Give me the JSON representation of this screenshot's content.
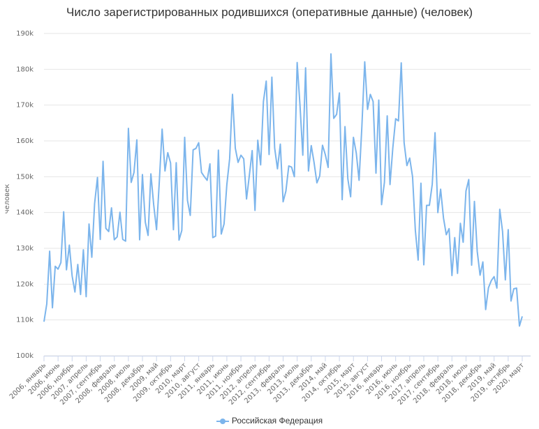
{
  "chart_data": {
    "type": "line",
    "title": "Число зарегистрированных родившихся (оперативные данные) (человек)",
    "xlabel": "",
    "ylabel": "человек",
    "ylim": [
      100000,
      190000
    ],
    "yticks": [
      "100k",
      "110k",
      "120k",
      "130k",
      "140k",
      "150k",
      "160k",
      "170k",
      "180k",
      "190k"
    ],
    "grid": true,
    "legend_position": "bottom-center",
    "xtick_labels": [
      "2006, январь",
      "2006, июнь",
      "2006, ноябрь",
      "2007, апрель",
      "2007, сентябрь",
      "2008, февраль",
      "2008, июль",
      "2008, декабрь",
      "2009, май",
      "2009, октябрь",
      "2010, март",
      "2010, август",
      "2011, январь",
      "2011, июнь",
      "2011, ноябрь",
      "2012, апрель",
      "2012, сентябрь",
      "2013, февраль",
      "2013, июль",
      "2013, декабрь",
      "2014, май",
      "2014, октябрь",
      "2015, март",
      "2015, август",
      "2016, январь",
      "2016, июнь",
      "2016, ноябрь",
      "2017, апрель",
      "2017, сентябрь",
      "2018, февраль",
      "2018, июль",
      "2018, декабрь",
      "2019, май",
      "2019, октябрь",
      "2020, март"
    ],
    "x_start": "2006-01",
    "x_end": "2020-03",
    "series": [
      {
        "name": "Российская Федерация",
        "color": "#7cb5ec",
        "values": [
          109500,
          114500,
          129200,
          113400,
          125000,
          124200,
          126000,
          140200,
          124000,
          130900,
          122300,
          117800,
          125500,
          117100,
          129600,
          116500,
          136800,
          127500,
          142500,
          149800,
          132500,
          154300,
          135600,
          134700,
          141300,
          132400,
          133200,
          140100,
          132500,
          132000,
          163500,
          148400,
          151200,
          160300,
          132400,
          150600,
          137300,
          133600,
          150800,
          142200,
          135200,
          148700,
          163300,
          151600,
          156700,
          153800,
          135200,
          153900,
          132300,
          135000,
          161000,
          143400,
          139200,
          157500,
          157900,
          159500,
          151200,
          150000,
          149000,
          153600,
          133000,
          133400,
          157400,
          134000,
          136800,
          147800,
          155000,
          173000,
          158000,
          154000,
          156000,
          155000,
          143800,
          150300,
          157300,
          140600,
          160200,
          153300,
          171000,
          176700,
          156200,
          177800,
          158000,
          152200,
          159100,
          143000,
          146000,
          153000,
          152700,
          150000,
          181900,
          169900,
          156000,
          180400,
          151600,
          158700,
          154000,
          148300,
          150200,
          158800,
          156200,
          152600,
          184300,
          166300,
          167400,
          173400,
          143600,
          164000,
          149400,
          144400,
          161000,
          156600,
          149000,
          164000,
          182100,
          168800,
          173000,
          171000,
          151000,
          171400,
          142200,
          148400,
          167000,
          147800,
          158000,
          166200,
          165600,
          181800,
          159500,
          153100,
          155200,
          150000,
          135000,
          126700,
          148200,
          125400,
          142000,
          142000,
          147900,
          162300,
          140000,
          146500,
          138500,
          133800,
          135500,
          122400,
          133000,
          123000,
          137000,
          131700,
          146000,
          149200,
          125300,
          143100,
          129200,
          122500,
          126200,
          112900,
          119000,
          121000,
          122100,
          118900,
          140900,
          134700,
          121200,
          135200,
          115300,
          118700,
          118900,
          108300,
          111000
        ]
      }
    ]
  },
  "legend": {
    "items": [
      {
        "label": "Российская Федерация",
        "color": "#7cb5ec"
      }
    ]
  }
}
